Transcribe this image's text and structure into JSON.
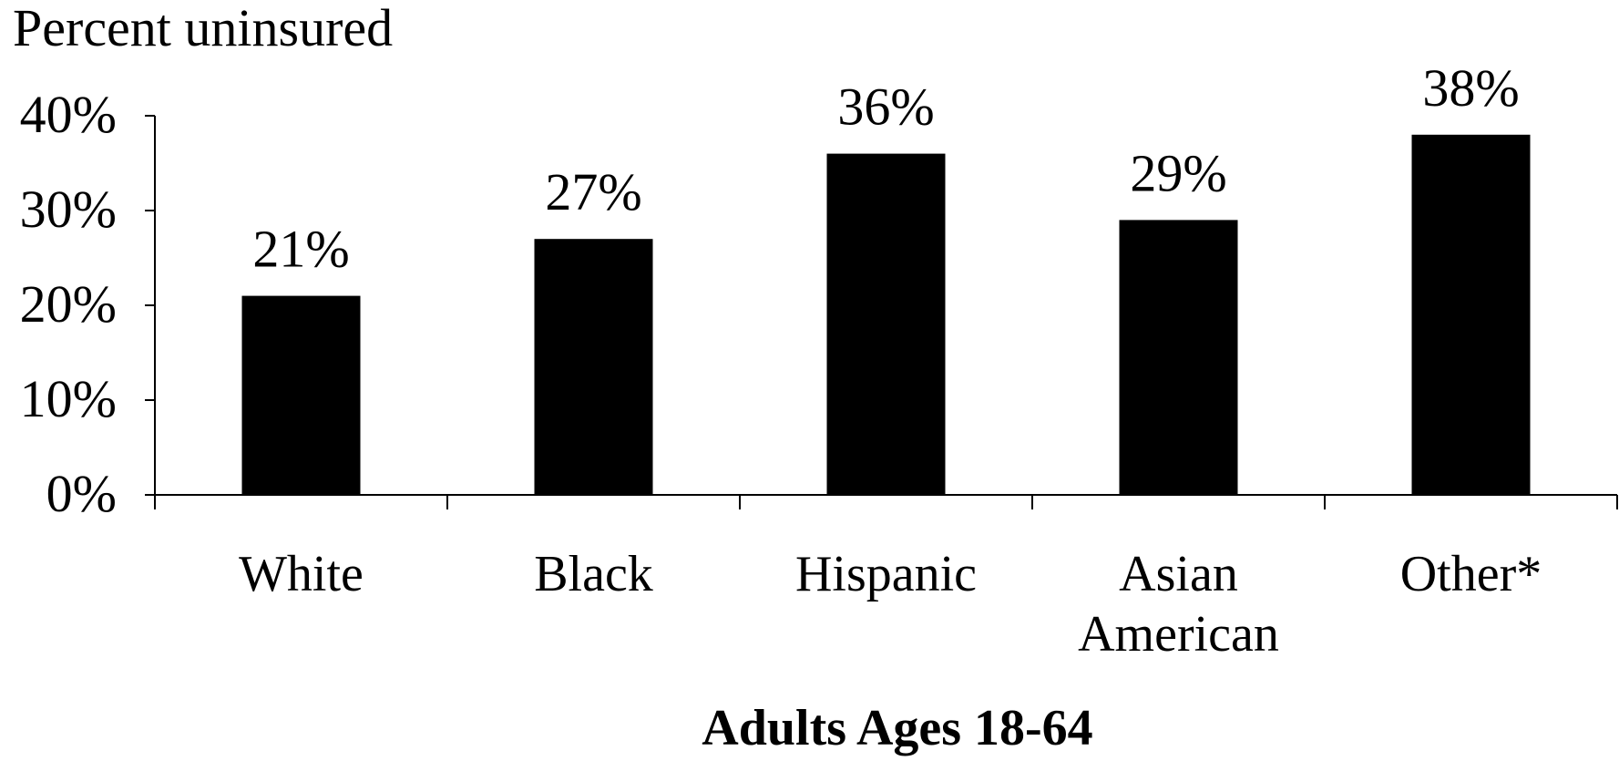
{
  "chart_data": {
    "type": "bar",
    "title": "",
    "ylabel": "Percent uninsured",
    "xlabel": "Adults Ages 18-64",
    "categories": [
      [
        "White"
      ],
      [
        "Black"
      ],
      [
        "Hispanic"
      ],
      [
        "Asian",
        "American"
      ],
      [
        "Other*"
      ]
    ],
    "values": [
      21,
      27,
      36,
      29,
      38
    ],
    "value_labels": [
      "21%",
      "27%",
      "36%",
      "29%",
      "38%"
    ],
    "ylim": [
      0,
      40
    ],
    "yticks": [
      0,
      10,
      20,
      30,
      40
    ],
    "ytick_labels": [
      "0%",
      "10%",
      "20%",
      "30%",
      "40%"
    ],
    "bar_color": "#000000",
    "grid": false,
    "legend": "none"
  }
}
